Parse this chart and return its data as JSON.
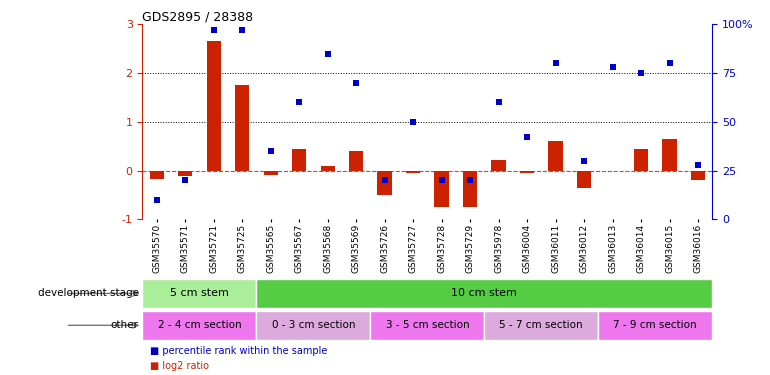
{
  "title": "GDS2895 / 28388",
  "samples": [
    "GSM35570",
    "GSM35571",
    "GSM35721",
    "GSM35725",
    "GSM35565",
    "GSM35567",
    "GSM35568",
    "GSM35569",
    "GSM35726",
    "GSM35727",
    "GSM35728",
    "GSM35729",
    "GSM35978",
    "GSM36004",
    "GSM36011",
    "GSM36012",
    "GSM36013",
    "GSM36014",
    "GSM36015",
    "GSM36016"
  ],
  "log2_ratio": [
    -0.18,
    -0.12,
    2.65,
    1.75,
    -0.08,
    0.45,
    0.1,
    0.4,
    -0.5,
    -0.05,
    -0.75,
    -0.75,
    0.22,
    -0.05,
    0.6,
    -0.35,
    0.0,
    0.45,
    0.65,
    -0.2
  ],
  "percentile": [
    10,
    20,
    97,
    97,
    35,
    60,
    85,
    70,
    20,
    50,
    20,
    20,
    60,
    42,
    80,
    30,
    78,
    75,
    80,
    28
  ],
  "ylim_left": [
    -1,
    3
  ],
  "ylim_right": [
    0,
    100
  ],
  "yticks_left": [
    -1,
    0,
    1,
    2,
    3
  ],
  "yticks_right": [
    0,
    25,
    50,
    75,
    100
  ],
  "hlines": [
    1.0,
    2.0
  ],
  "bar_color": "#cc2200",
  "dot_color": "#0000cc",
  "zero_line_color": "#cc4444",
  "background_color": "#ffffff",
  "dev_stage_rows": [
    {
      "label": "5 cm stem",
      "start": 0,
      "end": 4,
      "color": "#aaee99"
    },
    {
      "label": "10 cm stem",
      "start": 4,
      "end": 20,
      "color": "#55cc44"
    }
  ],
  "other_rows": [
    {
      "label": "2 - 4 cm section",
      "start": 0,
      "end": 4,
      "color": "#ee77ee"
    },
    {
      "label": "0 - 3 cm section",
      "start": 4,
      "end": 8,
      "color": "#ddaadd"
    },
    {
      "label": "3 - 5 cm section",
      "start": 8,
      "end": 12,
      "color": "#ee77ee"
    },
    {
      "label": "5 - 7 cm section",
      "start": 12,
      "end": 16,
      "color": "#ddaadd"
    },
    {
      "label": "7 - 9 cm section",
      "start": 16,
      "end": 20,
      "color": "#ee77ee"
    }
  ],
  "legend_items": [
    {
      "label": "log2 ratio",
      "color": "#cc2200"
    },
    {
      "label": "percentile rank within the sample",
      "color": "#0000cc"
    }
  ],
  "row_label_dev": "development stage",
  "row_label_other": "other"
}
